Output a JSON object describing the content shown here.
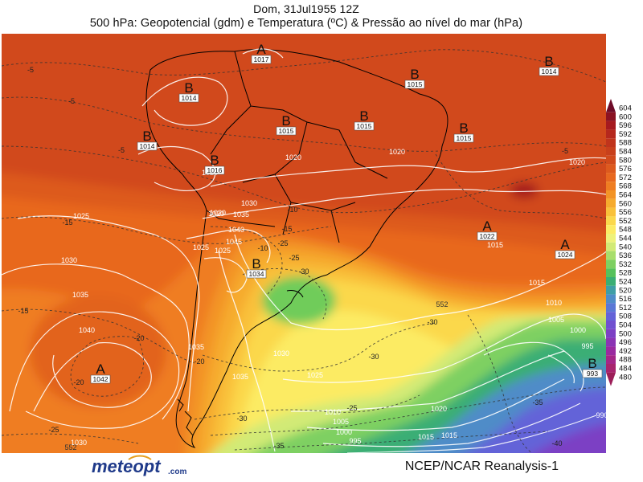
{
  "header": {
    "line1": "Dom, 31Jul1955 12Z",
    "line2": "500 hPa: Geopotencial (gdm) e Temperatura (ºC) & Pressão ao nível do mar (hPa)"
  },
  "footer": {
    "credits": "NCEP/NCAR Reanalysis-1",
    "logo_text": "meteopt",
    "logo_suffix": ".com"
  },
  "legend": {
    "levels": [
      "604",
      "600",
      "596",
      "592",
      "588",
      "584",
      "580",
      "576",
      "572",
      "568",
      "564",
      "560",
      "556",
      "552",
      "548",
      "544",
      "540",
      "536",
      "532",
      "528",
      "524",
      "520",
      "516",
      "512",
      "508",
      "504",
      "500",
      "496",
      "492",
      "488",
      "484",
      "480"
    ],
    "colors": [
      "#6e0b28",
      "#8a1222",
      "#a51a1f",
      "#b5281d",
      "#c0341c",
      "#c8401c",
      "#d14a1c",
      "#dd5a1e",
      "#e8681f",
      "#ef7d22",
      "#f39426",
      "#f6ab2e",
      "#f9c13a",
      "#fbd84c",
      "#fceb64",
      "#eef27a",
      "#d2ea76",
      "#a8de6c",
      "#7ed062",
      "#56c15c",
      "#3aae74",
      "#3f9ea6",
      "#4f8cc8",
      "#5a78d6",
      "#6463d8",
      "#7050d0",
      "#7c40c4",
      "#8b34b4",
      "#9a2aa0",
      "#a42688",
      "#a8246e",
      "#9c1e58"
    ]
  },
  "pressure_centers": [
    {
      "letter": "A",
      "value": "1017"
    },
    {
      "letter": "B",
      "value": "1014"
    },
    {
      "letter": "B",
      "value": "1014"
    },
    {
      "letter": "B",
      "value": "1015"
    },
    {
      "letter": "B",
      "value": "1015"
    },
    {
      "letter": "B",
      "value": "1015"
    },
    {
      "letter": "B",
      "value": "1015"
    },
    {
      "letter": "B",
      "value": "1014"
    },
    {
      "letter": "B",
      "value": "1016"
    },
    {
      "letter": "B",
      "value": "1034"
    },
    {
      "letter": "A",
      "value": "1022"
    },
    {
      "letter": "A",
      "value": "1024"
    },
    {
      "letter": "A",
      "value": "1042"
    },
    {
      "letter": "B",
      "value": "993"
    }
  ],
  "isobar_labels": [
    "1025",
    "1020",
    "1035",
    "1040",
    "1045",
    "1025",
    "1030",
    "1025",
    "1030",
    "1035",
    "1040",
    "1035",
    "1035",
    "1030",
    "1025",
    "1020",
    "1020",
    "1015",
    "1015",
    "1010",
    "1005",
    "1000",
    "995",
    "1020",
    "1015",
    "1010",
    "1005",
    "1000",
    "995",
    "990",
    "1030",
    "1020",
    "1015",
    "1020",
    "1025"
  ],
  "temp_labels": [
    "-5",
    "-5",
    "-5",
    "-10",
    "-10",
    "-15",
    "-15",
    "-20",
    "-20",
    "-20",
    "-25",
    "-25",
    "-25",
    "-30",
    "-30",
    "-30",
    "-35",
    "-40",
    "-5",
    "-30",
    "-35",
    "-15",
    "-25"
  ],
  "height_labels": [
    "552",
    "552"
  ]
}
